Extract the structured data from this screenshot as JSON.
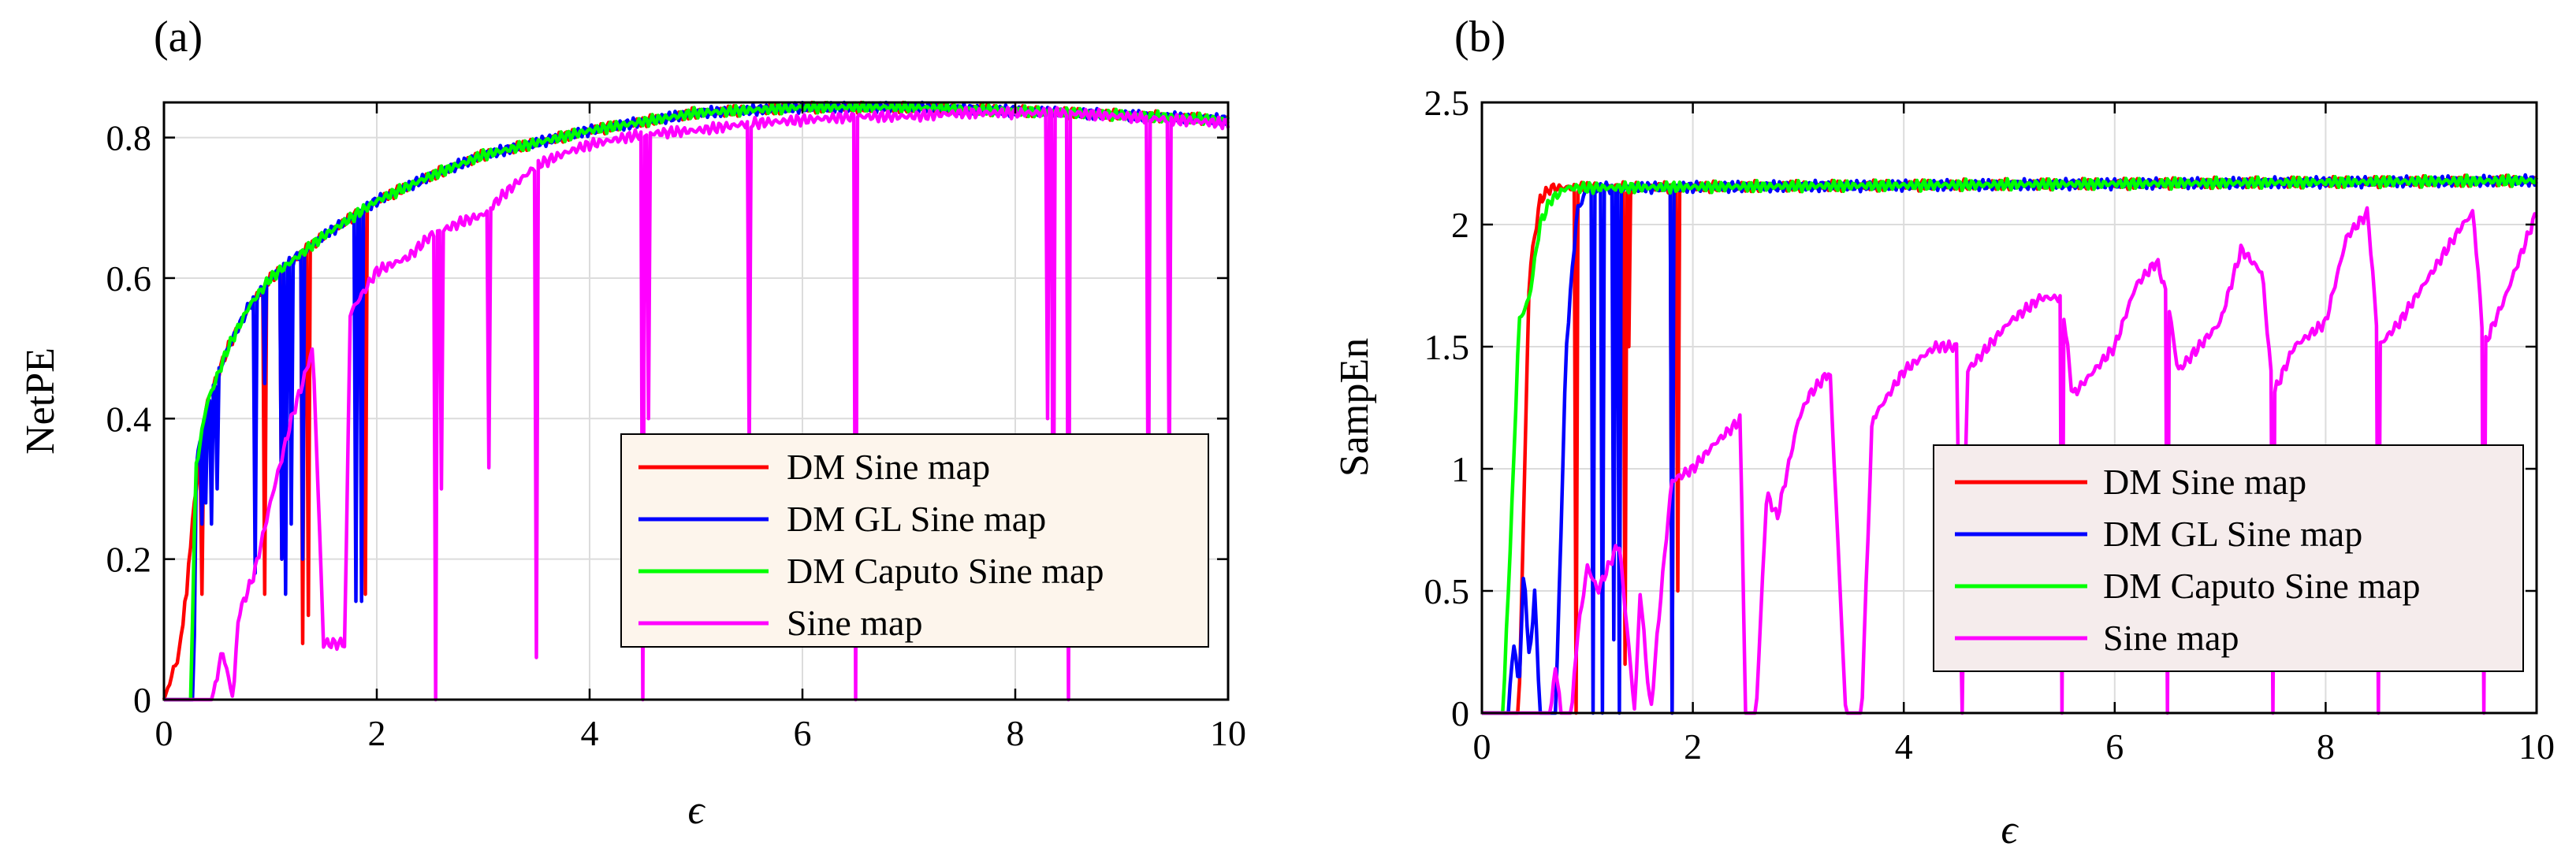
{
  "chart_data": [
    {
      "type": "line",
      "panel": "(a)",
      "xlabel": "ϵ",
      "ylabel": "NetPE",
      "xlim": [
        0,
        10
      ],
      "ylim": [
        0,
        0.85
      ],
      "xticks": [
        "0",
        "2",
        "4",
        "6",
        "8",
        "10"
      ],
      "yticks": [
        "0",
        "0.2",
        "0.4",
        "0.6",
        "0.8"
      ],
      "grid": true,
      "legend_position": "lower-right",
      "legend_background": "#fdf5ec",
      "series": [
        {
          "name": "DM Sine map",
          "color": "#ff0000",
          "base": [
            [
              0,
              0
            ],
            [
              0.15,
              0.07
            ],
            [
              0.3,
              0.3
            ],
            [
              0.4,
              0.42
            ],
            [
              0.6,
              0.5
            ],
            [
              0.8,
              0.56
            ],
            [
              1,
              0.6
            ],
            [
              1.5,
              0.66
            ],
            [
              2,
              0.71
            ],
            [
              2.5,
              0.745
            ],
            [
              3,
              0.775
            ],
            [
              4,
              0.81
            ],
            [
              5,
              0.835
            ],
            [
              6,
              0.843
            ],
            [
              7,
              0.843
            ],
            [
              8,
              0.838
            ],
            [
              9,
              0.832
            ],
            [
              10,
              0.825
            ]
          ],
          "dips": [
            [
              0.22,
              0.15
            ],
            [
              0.36,
              0.15
            ],
            [
              0.95,
              0.15
            ],
            [
              1.1,
              0.2
            ],
            [
              1.3,
              0.08
            ],
            [
              1.35,
              0.12
            ],
            [
              1.85,
              0.2
            ],
            [
              1.9,
              0.15
            ]
          ]
        },
        {
          "name": "DM GL Sine map",
          "color": "#0000ff",
          "base": [
            [
              0,
              0
            ],
            [
              0.28,
              0
            ],
            [
              0.3,
              0.33
            ],
            [
              0.4,
              0.42
            ],
            [
              0.6,
              0.5
            ],
            [
              0.8,
              0.56
            ],
            [
              1,
              0.6
            ],
            [
              1.5,
              0.66
            ],
            [
              2,
              0.71
            ],
            [
              2.5,
              0.745
            ],
            [
              3,
              0.775
            ],
            [
              4,
              0.81
            ],
            [
              5,
              0.835
            ],
            [
              6,
              0.843
            ],
            [
              7,
              0.843
            ],
            [
              8,
              0.838
            ],
            [
              9,
              0.832
            ],
            [
              10,
              0.825
            ]
          ],
          "dips": [
            [
              0.35,
              0.25
            ],
            [
              0.4,
              0.28
            ],
            [
              0.45,
              0.25
            ],
            [
              0.5,
              0.3
            ],
            [
              0.85,
              0.18
            ],
            [
              0.95,
              0.45
            ],
            [
              1.1,
              0.2
            ],
            [
              1.15,
              0.15
            ],
            [
              1.2,
              0.25
            ],
            [
              1.3,
              0.2
            ],
            [
              1.8,
              0.14
            ],
            [
              1.85,
              0.14
            ]
          ]
        },
        {
          "name": "DM Caputo Sine map",
          "color": "#00ff00",
          "base": [
            [
              0,
              0
            ],
            [
              0.25,
              0
            ],
            [
              0.3,
              0.33
            ],
            [
              0.4,
              0.42
            ],
            [
              0.6,
              0.5
            ],
            [
              0.8,
              0.56
            ],
            [
              1,
              0.6
            ],
            [
              1.5,
              0.66
            ],
            [
              2,
              0.71
            ],
            [
              2.5,
              0.745
            ],
            [
              3,
              0.775
            ],
            [
              4,
              0.81
            ],
            [
              5,
              0.835
            ],
            [
              6,
              0.843
            ],
            [
              7,
              0.843
            ],
            [
              8,
              0.838
            ],
            [
              9,
              0.832
            ],
            [
              10,
              0.825
            ]
          ],
          "dips": []
        },
        {
          "name": "Sine map",
          "color": "#ff00ff",
          "base": [
            [
              0,
              0
            ],
            [
              0.45,
              0
            ],
            [
              0.55,
              0.07
            ],
            [
              0.65,
              0
            ],
            [
              0.7,
              0.12
            ],
            [
              0.85,
              0.18
            ],
            [
              1,
              0.28
            ],
            [
              1.2,
              0.4
            ],
            [
              1.4,
              0.5
            ],
            [
              1.5,
              0.08
            ],
            [
              1.7,
              0.08
            ],
            [
              1.75,
              0.55
            ],
            [
              2,
              0.61
            ],
            [
              2.3,
              0.63
            ],
            [
              2.5,
              0.66
            ],
            [
              2.8,
              0.68
            ],
            [
              3,
              0.69
            ],
            [
              3.2,
              0.72
            ],
            [
              3.5,
              0.76
            ],
            [
              3.8,
              0.78
            ],
            [
              4,
              0.79
            ],
            [
              4.5,
              0.805
            ],
            [
              5,
              0.81
            ],
            [
              5.5,
              0.82
            ],
            [
              6,
              0.825
            ],
            [
              6.5,
              0.83
            ],
            [
              7,
              0.83
            ],
            [
              7.5,
              0.835
            ],
            [
              8,
              0.835
            ],
            [
              8.5,
              0.835
            ],
            [
              9,
              0.83
            ],
            [
              9.5,
              0.825
            ],
            [
              10,
              0.82
            ]
          ],
          "dips": [
            [
              2.55,
              0
            ],
            [
              2.6,
              0.3
            ],
            [
              3.05,
              0.33
            ],
            [
              3.5,
              0.06
            ],
            [
              4.5,
              0
            ],
            [
              4.55,
              0.4
            ],
            [
              5.5,
              0.35
            ],
            [
              6.5,
              0
            ],
            [
              8.3,
              0.4
            ],
            [
              8.35,
              0.1
            ],
            [
              8.5,
              0
            ],
            [
              9.25,
              0.2
            ],
            [
              9.45,
              0.3
            ]
          ]
        }
      ]
    },
    {
      "type": "line",
      "panel": "(b)",
      "xlabel": "ϵ",
      "ylabel": "SampEn",
      "xlim": [
        0,
        10
      ],
      "ylim": [
        0,
        2.5
      ],
      "xticks": [
        "0",
        "2",
        "4",
        "6",
        "8",
        "10"
      ],
      "yticks": [
        "0",
        "0.5",
        "1",
        "1.5",
        "2",
        "2.5"
      ],
      "grid": true,
      "legend_position": "lower-right",
      "legend_background": "#f5ecec",
      "series": [
        {
          "name": "DM Sine map",
          "color": "#ff0000",
          "base": [
            [
              0,
              0
            ],
            [
              0.35,
              0
            ],
            [
              0.45,
              1.8
            ],
            [
              0.55,
              2.1
            ],
            [
              0.65,
              2.15
            ],
            [
              10,
              2.18
            ]
          ],
          "dips": [
            [
              0.9,
              0
            ],
            [
              1.35,
              0.2
            ],
            [
              1.4,
              1.5
            ],
            [
              1.8,
              0
            ],
            [
              1.85,
              0.5
            ]
          ]
        },
        {
          "name": "DM GL Sine map",
          "color": "#0000ff",
          "base": [
            [
              0,
              0
            ],
            [
              0.25,
              0
            ],
            [
              0.3,
              0.3
            ],
            [
              0.35,
              0.1
            ],
            [
              0.4,
              0.6
            ],
            [
              0.45,
              0.2
            ],
            [
              0.5,
              0.5
            ],
            [
              0.55,
              0
            ],
            [
              0.7,
              0
            ],
            [
              0.8,
              1.5
            ],
            [
              0.9,
              2.05
            ],
            [
              1,
              2.15
            ],
            [
              10,
              2.18
            ]
          ],
          "dips": [
            [
              1.05,
              0
            ],
            [
              1.15,
              0
            ],
            [
              1.25,
              0.3
            ],
            [
              1.3,
              0
            ],
            [
              1.8,
              0
            ]
          ]
        },
        {
          "name": "DM Caputo Sine map",
          "color": "#00ff00",
          "base": [
            [
              0,
              0
            ],
            [
              0.2,
              0
            ],
            [
              0.3,
              1
            ],
            [
              0.35,
              1.6
            ],
            [
              0.45,
              1.7
            ],
            [
              0.55,
              2
            ],
            [
              0.65,
              2.1
            ],
            [
              0.8,
              2.15
            ],
            [
              10,
              2.18
            ]
          ],
          "dips": []
        },
        {
          "name": "Sine map",
          "color": "#ff00ff",
          "base": [
            [
              0,
              0
            ],
            [
              0.65,
              0
            ],
            [
              0.7,
              0.2
            ],
            [
              0.75,
              0
            ],
            [
              0.85,
              0
            ],
            [
              0.9,
              0.3
            ],
            [
              1,
              0.6
            ],
            [
              1.1,
              0.5
            ],
            [
              1.3,
              0.7
            ],
            [
              1.45,
              0
            ],
            [
              1.5,
              0.5
            ],
            [
              1.6,
              0
            ],
            [
              1.7,
              0.5
            ],
            [
              1.8,
              0.95
            ],
            [
              2,
              1
            ],
            [
              2.2,
              1.1
            ],
            [
              2.45,
              1.2
            ],
            [
              2.5,
              0
            ],
            [
              2.6,
              0
            ],
            [
              2.7,
              0.9
            ],
            [
              2.8,
              0.8
            ],
            [
              3,
              1.2
            ],
            [
              3.1,
              1.3
            ],
            [
              3.3,
              1.4
            ],
            [
              3.45,
              0
            ],
            [
              3.6,
              0
            ],
            [
              3.7,
              1.2
            ],
            [
              4,
              1.4
            ],
            [
              4.3,
              1.5
            ],
            [
              4.5,
              1.5
            ],
            [
              4.55,
              0
            ],
            [
              4.6,
              1.4
            ],
            [
              4.8,
              1.5
            ],
            [
              5,
              1.6
            ],
            [
              5.3,
              1.7
            ],
            [
              5.5,
              1.7
            ],
            [
              5.6,
              1.3
            ],
            [
              5.8,
              1.4
            ],
            [
              6,
              1.5
            ],
            [
              6.2,
              1.75
            ],
            [
              6.4,
              1.85
            ],
            [
              6.5,
              1.7
            ],
            [
              6.6,
              1.4
            ],
            [
              6.8,
              1.5
            ],
            [
              7,
              1.6
            ],
            [
              7.2,
              1.9
            ],
            [
              7.4,
              1.8
            ],
            [
              7.5,
              1.3
            ],
            [
              7.7,
              1.5
            ],
            [
              8,
              1.6
            ],
            [
              8.2,
              1.95
            ],
            [
              8.4,
              2.05
            ],
            [
              8.5,
              1.5
            ],
            [
              8.7,
              1.6
            ],
            [
              9,
              1.8
            ],
            [
              9.3,
              2
            ],
            [
              9.4,
              2.05
            ],
            [
              9.5,
              1.5
            ],
            [
              9.7,
              1.7
            ],
            [
              10,
              2.05
            ]
          ],
          "dips": [
            [
              4.55,
              0
            ],
            [
              5.5,
              0
            ],
            [
              6.5,
              0
            ],
            [
              7.5,
              0
            ],
            [
              8.5,
              0
            ],
            [
              9.5,
              0
            ]
          ]
        }
      ]
    }
  ]
}
